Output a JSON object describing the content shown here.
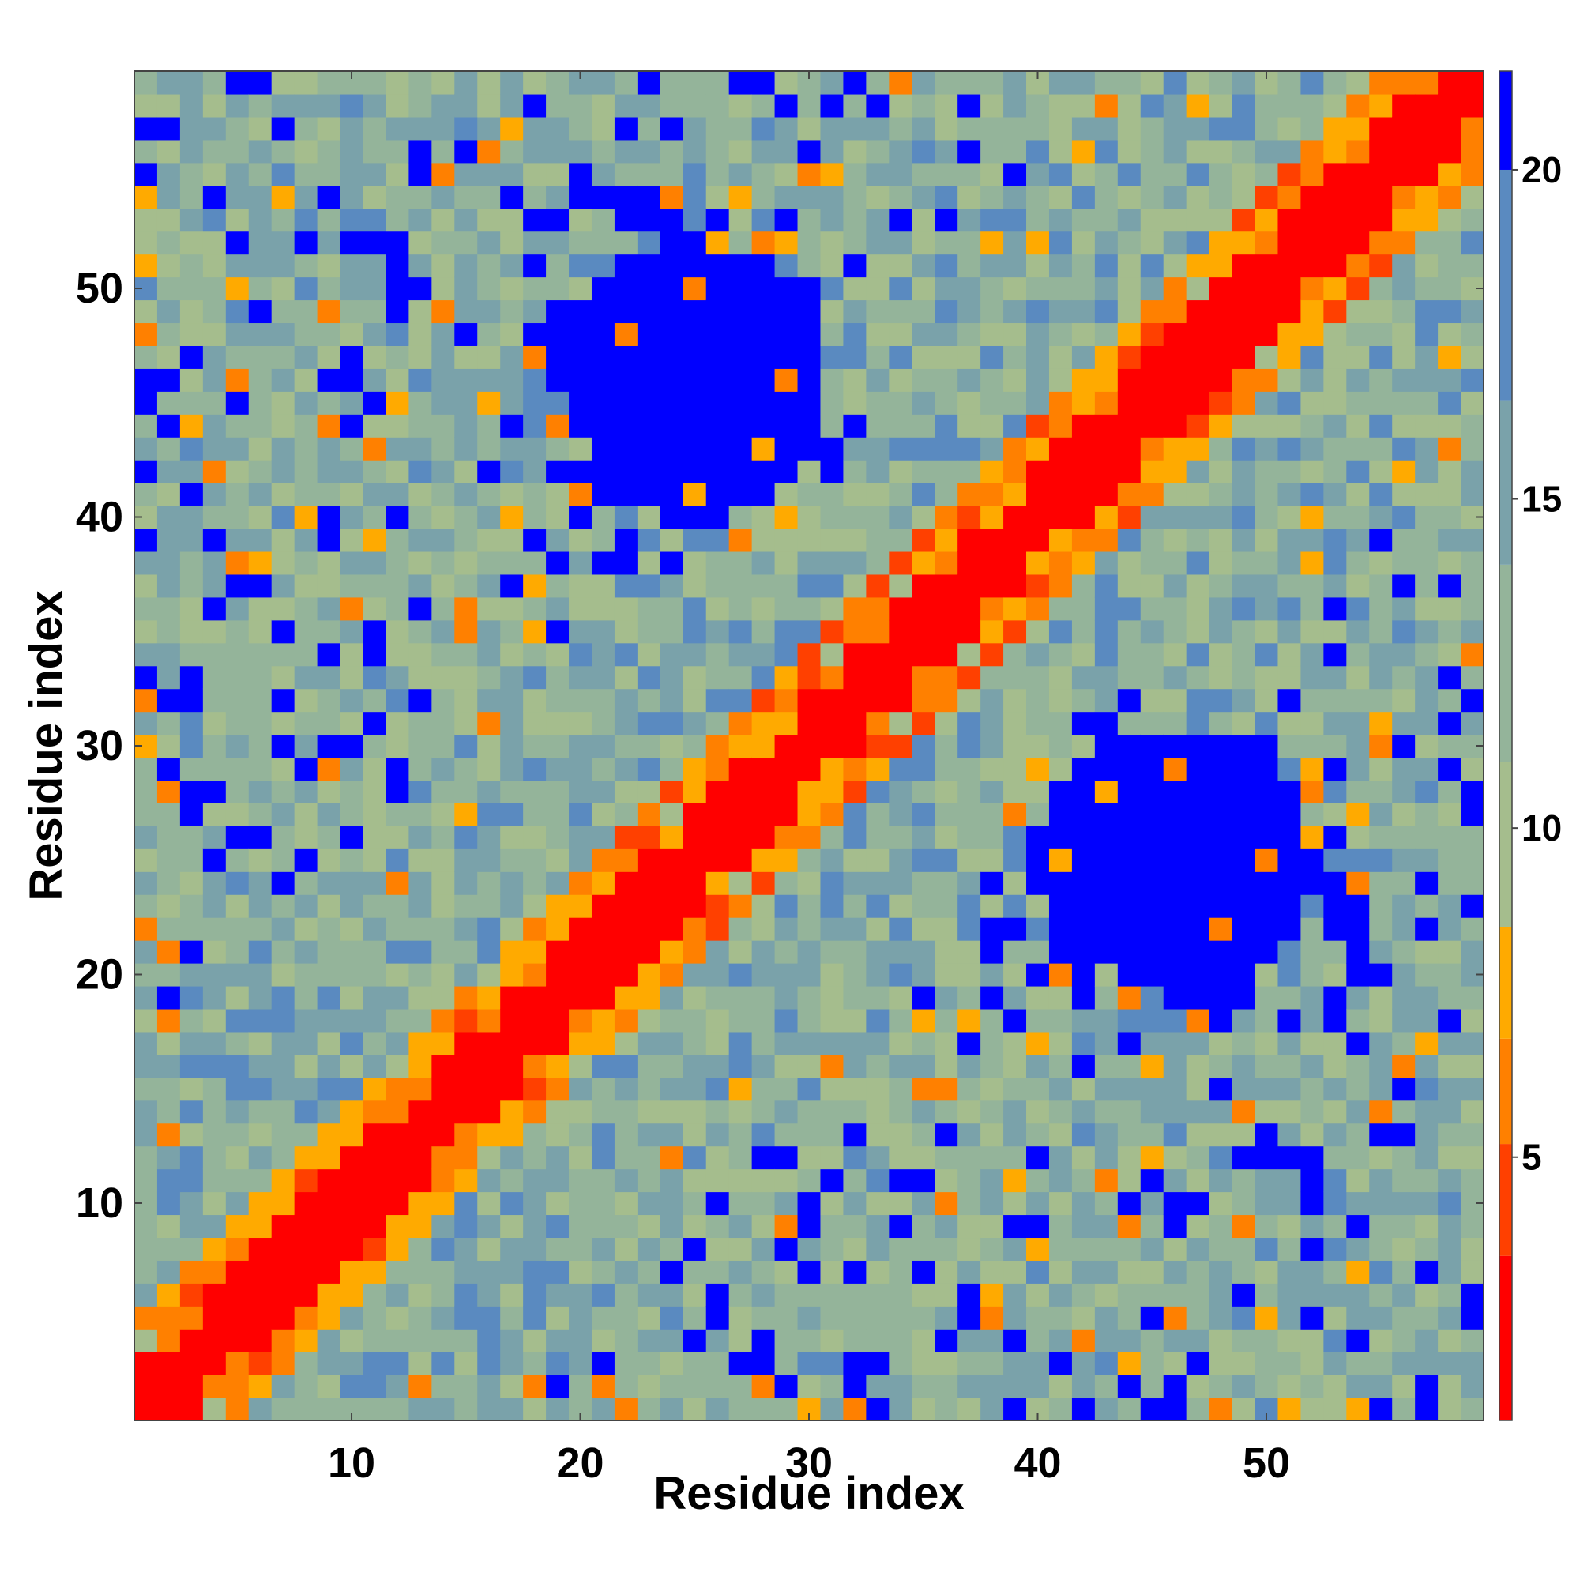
{
  "chart_data": {
    "type": "heatmap",
    "title": "",
    "xlabel": "Residue index",
    "ylabel": "Residue index",
    "n_residues": 59,
    "x_ticks": [
      10,
      20,
      30,
      40,
      50
    ],
    "y_ticks": [
      10,
      20,
      30,
      40,
      50
    ],
    "colorbar": {
      "range": [
        1,
        21.5
      ],
      "ticks": [
        5,
        10,
        15,
        20
      ],
      "bands": [
        {
          "from": 1.0,
          "to": 3.5,
          "color": "#ff0000"
        },
        {
          "from": 3.5,
          "to": 5.2,
          "color": "#ff4000"
        },
        {
          "from": 5.2,
          "to": 6.8,
          "color": "#ff8000"
        },
        {
          "from": 6.8,
          "to": 8.5,
          "color": "#ffaa00"
        },
        {
          "from": 8.5,
          "to": 11.0,
          "color": "#a5bd8d"
        },
        {
          "from": 11.0,
          "to": 14.0,
          "color": "#94b49a"
        },
        {
          "from": 14.0,
          "to": 16.5,
          "color": "#7aa2aa"
        },
        {
          "from": 16.5,
          "to": 20.0,
          "color": "#5a8ac0"
        },
        {
          "from": 20.0,
          "to": 21.5,
          "color": "#0000ff"
        }
      ]
    },
    "pattern": {
      "diagonal_band_width": 1.5,
      "near_diagonal_max_offset": 5,
      "blue_clusters": [
        {
          "center_x": 25,
          "center_y": 46,
          "radius_x": 6,
          "radius_y": 7
        },
        {
          "center_x": 46,
          "center_y": 25,
          "radius_x": 7,
          "radius_y": 6
        }
      ],
      "scattered_blue_corners": true
    }
  }
}
